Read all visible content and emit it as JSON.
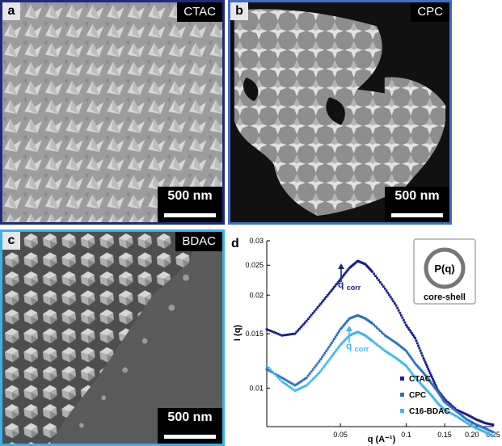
{
  "panels": {
    "a": {
      "label": "a",
      "tag": "CTAC",
      "scale_bar": "500 nm"
    },
    "b": {
      "label": "b",
      "tag": "CPC",
      "scale_bar": "500 nm"
    },
    "c": {
      "label": "c",
      "tag": "BDAC",
      "scale_bar": "500 nm"
    }
  },
  "colors": {
    "border_a": "#1f2a7a",
    "border_b": "#3f6fbf",
    "border_c": "#3ab0e6",
    "ctac": "#1a1f8c",
    "cpc": "#2e6fc4",
    "bdac": "#3fb8ee"
  },
  "plot": {
    "panel_label": "d",
    "inset_title": "P(q)",
    "inset_caption": "core-shell",
    "annotation_1": "q",
    "annotation_1_sub": "corr",
    "annotation_2": "q",
    "annotation_2_sub": "corr"
  },
  "chart_data": {
    "type": "scatter",
    "xlabel": "q (A⁻¹)",
    "ylabel": "I (q)",
    "x_scale": "log",
    "y_scale": "log",
    "xlim": [
      0.023,
      0.25
    ],
    "ylim": [
      0.0075,
      0.03
    ],
    "x_tick_labels": [
      "0.05",
      "0.1",
      "0.15",
      "0.20",
      "0.25"
    ],
    "x_ticks": [
      0.05,
      0.1,
      0.15,
      0.2,
      0.25
    ],
    "y_tick_labels": [
      "0.03",
      "0.025",
      "0.02",
      "0.015",
      "0.01"
    ],
    "y_ticks": [
      0.03,
      0.025,
      0.02,
      0.015,
      0.01
    ],
    "legend": [
      "CTAC",
      "CPC",
      "C16-BDAC"
    ],
    "legend_position": "bottom-right",
    "series": [
      {
        "name": "CTAC",
        "x": [
          0.023,
          0.027,
          0.031,
          0.035,
          0.04,
          0.045,
          0.05,
          0.055,
          0.06,
          0.065,
          0.07,
          0.08,
          0.09,
          0.1,
          0.11,
          0.12,
          0.13,
          0.14,
          0.15,
          0.17,
          0.19,
          0.21,
          0.23,
          0.25
        ],
        "y": [
          0.0155,
          0.0148,
          0.015,
          0.0165,
          0.0185,
          0.0205,
          0.0225,
          0.0245,
          0.0258,
          0.0252,
          0.0238,
          0.021,
          0.0185,
          0.016,
          0.0145,
          0.0125,
          0.011,
          0.0098,
          0.0092,
          0.0085,
          0.0082,
          0.0079,
          0.0077,
          0.0076
        ]
      },
      {
        "name": "CPC",
        "x": [
          0.023,
          0.027,
          0.031,
          0.035,
          0.04,
          0.045,
          0.05,
          0.055,
          0.06,
          0.065,
          0.07,
          0.08,
          0.09,
          0.1,
          0.11,
          0.12,
          0.13,
          0.14,
          0.15,
          0.17,
          0.19,
          0.21,
          0.23,
          0.25
        ],
        "y": [
          0.0115,
          0.0108,
          0.0102,
          0.0108,
          0.0122,
          0.0138,
          0.0155,
          0.0168,
          0.0172,
          0.0168,
          0.0162,
          0.0148,
          0.014,
          0.0132,
          0.012,
          0.0112,
          0.0104,
          0.0097,
          0.009,
          0.0084,
          0.0079,
          0.0076,
          0.0074,
          0.0072
        ]
      },
      {
        "name": "C16-BDAC",
        "x": [
          0.023,
          0.027,
          0.031,
          0.035,
          0.04,
          0.045,
          0.05,
          0.055,
          0.06,
          0.065,
          0.07,
          0.08,
          0.09,
          0.1,
          0.11,
          0.12,
          0.13,
          0.14,
          0.15,
          0.17,
          0.19,
          0.21,
          0.23,
          0.25
        ],
        "y": [
          0.0118,
          0.0105,
          0.0098,
          0.0102,
          0.0112,
          0.0125,
          0.0138,
          0.0148,
          0.0152,
          0.0148,
          0.0142,
          0.0132,
          0.0125,
          0.0118,
          0.0108,
          0.0101,
          0.0095,
          0.0089,
          0.0085,
          0.0081,
          0.0077,
          0.0074,
          0.0072,
          0.007
        ]
      }
    ]
  }
}
